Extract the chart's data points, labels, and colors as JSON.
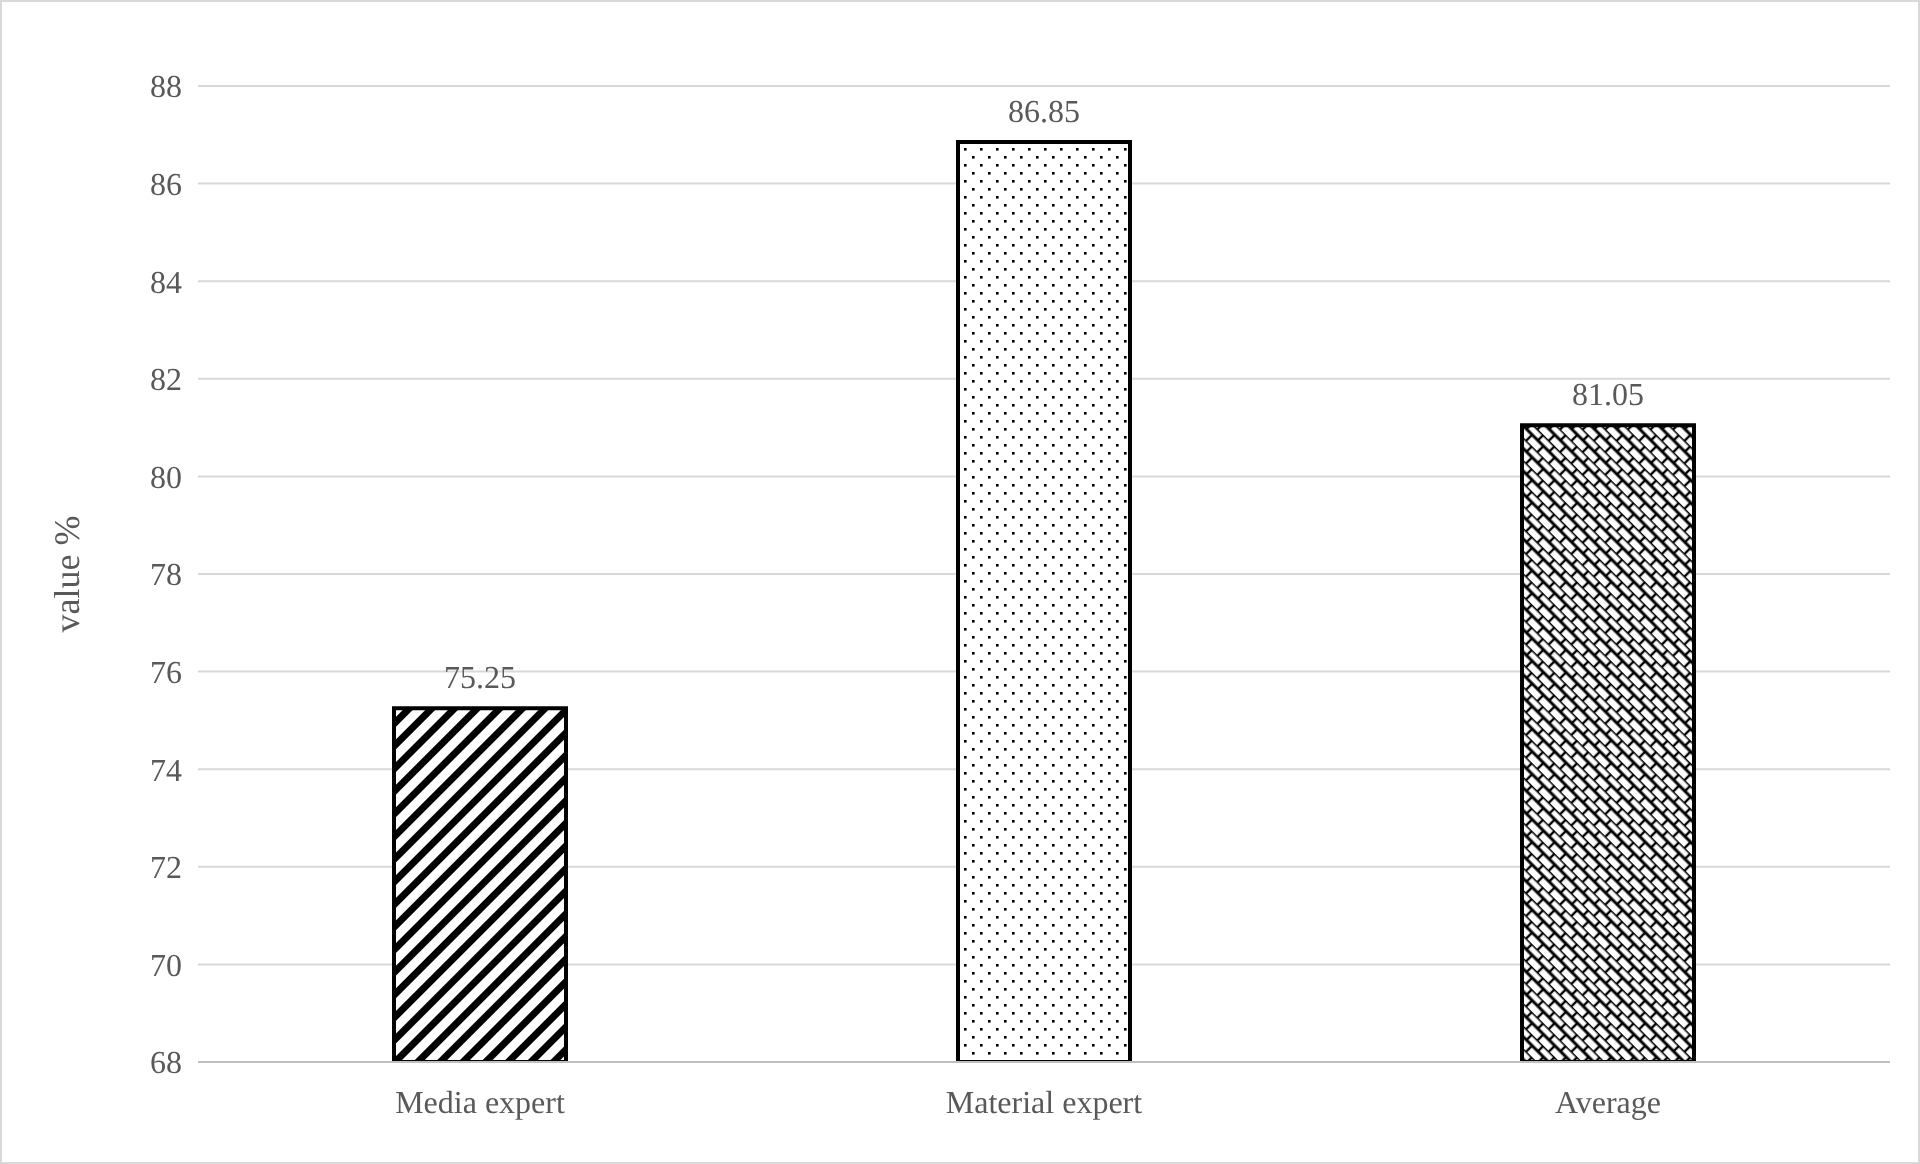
{
  "chart_data": {
    "type": "bar",
    "ylabel": "value %",
    "categories": [
      "Media expert",
      "Material expert",
      "Average"
    ],
    "values": [
      75.25,
      86.85,
      81.05
    ],
    "colors": [
      "#000000",
      "#000000",
      "#000000"
    ],
    "ylim": [
      68,
      88
    ],
    "yticks": [
      68,
      70,
      72,
      74,
      76,
      78,
      80,
      82,
      84,
      86,
      88
    ],
    "grid": "y",
    "data_labels": true
  }
}
